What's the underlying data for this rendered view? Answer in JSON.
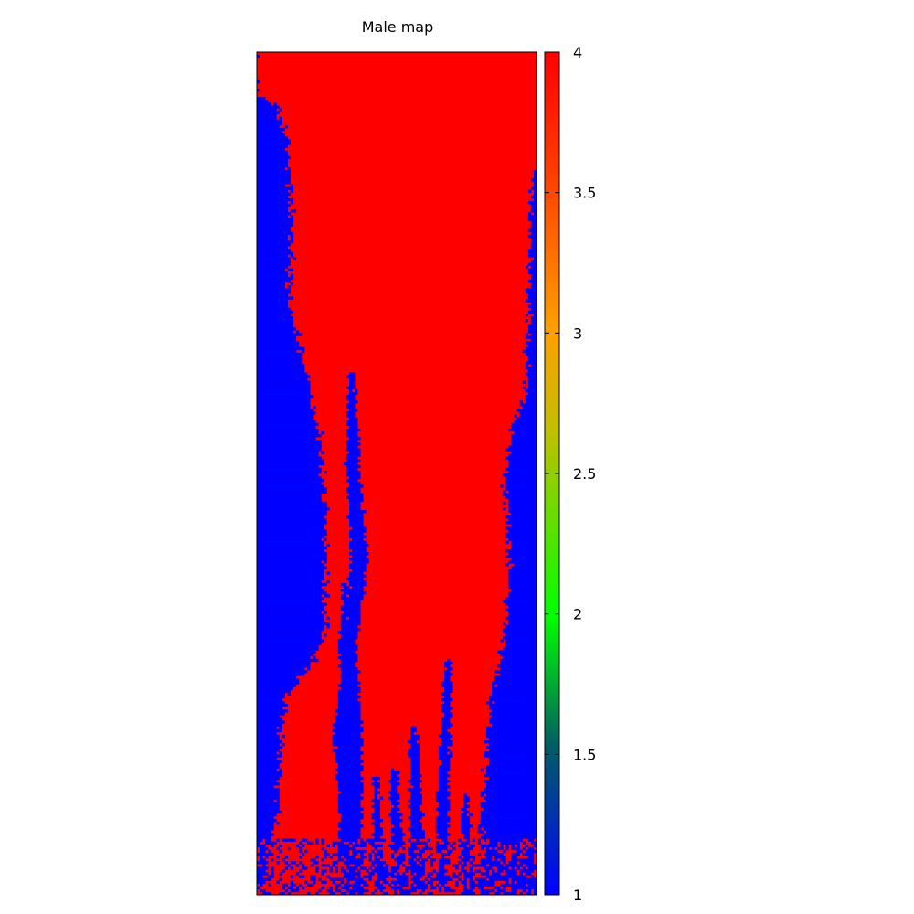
{
  "chart_data": {
    "type": "heatmap",
    "title": "Male map",
    "colorbar": {
      "range": [
        1,
        4
      ],
      "ticks": [
        1,
        1.5,
        2,
        2.5,
        3,
        3.5,
        4
      ],
      "tick_labels": [
        "1",
        "1.5",
        "2",
        "2.5",
        "3",
        "3.5",
        "4"
      ],
      "palette": [
        "#0000ff",
        "#007a7a",
        "#00ff00",
        "#ffff00",
        "#ff8000",
        "#ff0000"
      ]
    },
    "values_present": [
      1,
      4
    ],
    "grid_shape": {
      "cols": 100,
      "rows": 300
    },
    "colors": {
      "low": "#0000ff",
      "high": "#ff0000"
    }
  }
}
